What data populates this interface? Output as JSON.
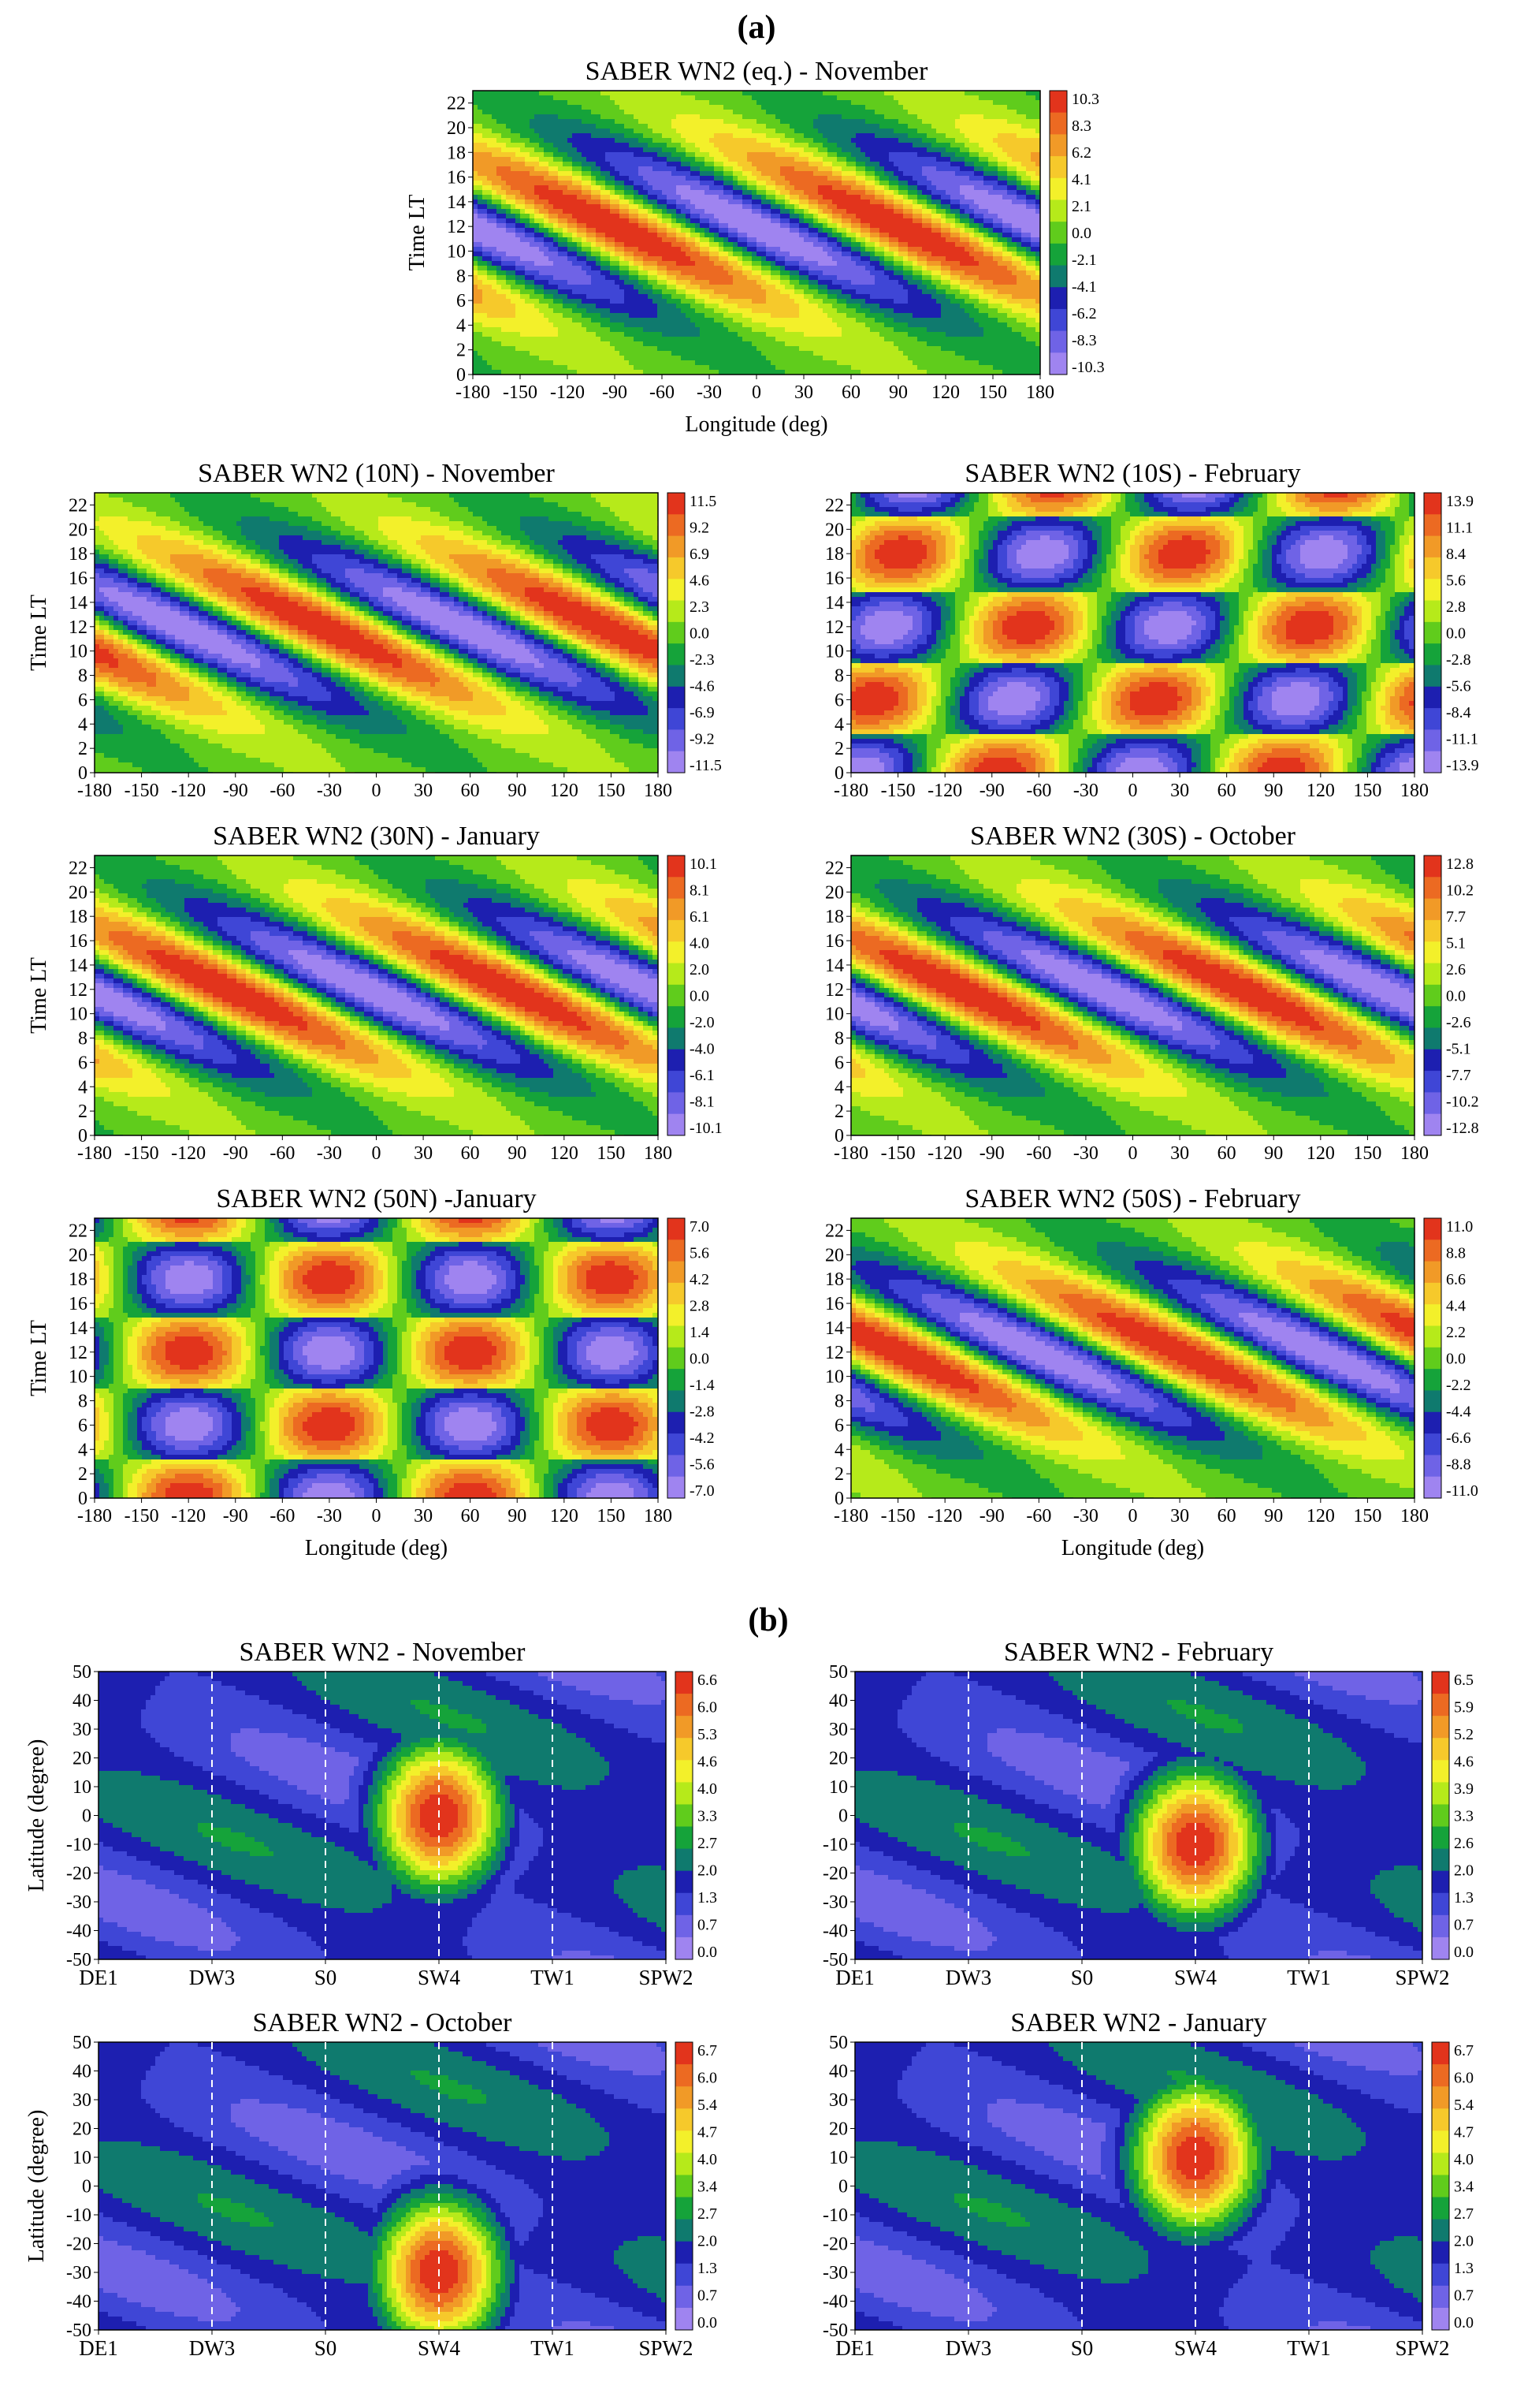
{
  "sections": {
    "a": "(a)",
    "b": "(b)"
  },
  "contour_palette": [
    "#9f84f0",
    "#6f63e6",
    "#3f46d6",
    "#1d1fb0",
    "#0f7a6e",
    "#15a33a",
    "#60cc1c",
    "#b6ea1a",
    "#f3f02a",
    "#f6c92b",
    "#f19a27",
    "#ec6a22",
    "#e2341c"
  ],
  "chart_data": [
    {
      "id": "wn2-eq-nov",
      "type": "heatmap",
      "title": "SABER WN2 (eq.) - November",
      "xlabel": "Longitude (deg)",
      "ylabel": "Time LT",
      "xlim": [
        -180,
        180
      ],
      "ylim": [
        0,
        23
      ],
      "x_ticks": [
        "-180",
        "-150",
        "-120",
        "-90",
        "-60",
        "-30",
        "0",
        "30",
        "60",
        "90",
        "120",
        "150",
        "180"
      ],
      "y_ticks": [
        "0",
        "2",
        "4",
        "6",
        "8",
        "10",
        "12",
        "14",
        "16",
        "18",
        "20",
        "22"
      ],
      "colorbar": [
        "10.3",
        "8.3",
        "6.2",
        "4.1",
        "2.1",
        "0.0",
        "-2.1",
        "-4.1",
        "-6.2",
        "-8.3",
        "-10.3"
      ],
      "amplitude": 10.3,
      "lon_shift_per_hour": -15,
      "phase_lon": -90,
      "mode": "migrating"
    },
    {
      "id": "wn2-10n-nov",
      "type": "heatmap",
      "title": "SABER WN2 (10N) - November",
      "xlabel": "",
      "ylabel": "Time LT",
      "xlim": [
        -180,
        180
      ],
      "ylim": [
        0,
        23
      ],
      "x_ticks": [
        "-180",
        "-150",
        "-120",
        "-90",
        "-60",
        "-30",
        "0",
        "30",
        "60",
        "90",
        "120",
        "150",
        "180"
      ],
      "y_ticks": [
        "0",
        "2",
        "4",
        "6",
        "8",
        "10",
        "12",
        "14",
        "16",
        "18",
        "20",
        "22"
      ],
      "colorbar": [
        "11.5",
        "9.2",
        "6.9",
        "4.6",
        "2.3",
        "0.0",
        "-2.3",
        "-4.6",
        "-6.9",
        "-9.2",
        "-11.5"
      ],
      "amplitude": 11.5,
      "lon_shift_per_hour": -15,
      "phase_lon": -35,
      "mode": "migrating"
    },
    {
      "id": "wn2-10s-feb",
      "type": "heatmap",
      "title": "SABER WN2 (10S) - February",
      "xlabel": "",
      "ylabel": "",
      "xlim": [
        -180,
        180
      ],
      "ylim": [
        0,
        23
      ],
      "x_ticks": [
        "-180",
        "-150",
        "-120",
        "-90",
        "-60",
        "-30",
        "0",
        "30",
        "60",
        "90",
        "120",
        "150",
        "180"
      ],
      "y_ticks": [
        "0",
        "2",
        "4",
        "6",
        "8",
        "10",
        "12",
        "14",
        "16",
        "18",
        "20",
        "22"
      ],
      "colorbar": [
        "13.9",
        "11.1",
        "8.4",
        "5.6",
        "2.8",
        "0.0",
        "-2.8",
        "-5.6",
        "-8.4",
        "-11.1",
        "-13.9"
      ],
      "amplitude": 13.9,
      "lon_shift_per_hour": -3,
      "phase_lon": -85,
      "mode": "standing"
    },
    {
      "id": "wn2-30n-jan",
      "type": "heatmap",
      "title": "SABER WN2 (30N) - January",
      "xlabel": "",
      "ylabel": "Time LT",
      "xlim": [
        -180,
        180
      ],
      "ylim": [
        0,
        23
      ],
      "x_ticks": [
        "-180",
        "-150",
        "-120",
        "-90",
        "-60",
        "-30",
        "0",
        "30",
        "60",
        "90",
        "120",
        "150",
        "180"
      ],
      "y_ticks": [
        "0",
        "2",
        "4",
        "6",
        "8",
        "10",
        "12",
        "14",
        "16",
        "18",
        "20",
        "22"
      ],
      "colorbar": [
        "10.1",
        "8.1",
        "6.1",
        "4.0",
        "2.0",
        "0.0",
        "-2.0",
        "-4.0",
        "-6.1",
        "-8.1",
        "-10.1"
      ],
      "amplitude": 10.1,
      "lon_shift_per_hour": -15,
      "phase_lon": -95,
      "mode": "migrating"
    },
    {
      "id": "wn2-30s-oct",
      "type": "heatmap",
      "title": "SABER WN2 (30S) - October",
      "xlabel": "",
      "ylabel": "",
      "xlim": [
        -180,
        180
      ],
      "ylim": [
        0,
        23
      ],
      "x_ticks": [
        "-180",
        "-150",
        "-120",
        "-90",
        "-60",
        "-30",
        "0",
        "30",
        "60",
        "90",
        "120",
        "150",
        "180"
      ],
      "y_ticks": [
        "0",
        "2",
        "4",
        "6",
        "8",
        "10",
        "12",
        "14",
        "16",
        "18",
        "20",
        "22"
      ],
      "colorbar": [
        "12.8",
        "10.2",
        "7.7",
        "5.1",
        "2.6",
        "0.0",
        "-2.6",
        "-5.1",
        "-7.7",
        "-10.2",
        "-12.8"
      ],
      "amplitude": 12.8,
      "lon_shift_per_hour": -15,
      "phase_lon": -110,
      "mode": "migrating"
    },
    {
      "id": "wn2-50n-jan",
      "type": "heatmap",
      "title": "SABER WN2 (50N) -January",
      "xlabel": "Longitude (deg)",
      "ylabel": "Time LT",
      "xlim": [
        -180,
        180
      ],
      "ylim": [
        0,
        23
      ],
      "x_ticks": [
        "-180",
        "-150",
        "-120",
        "-90",
        "-60",
        "-30",
        "0",
        "30",
        "60",
        "90",
        "120",
        "150",
        "180"
      ],
      "y_ticks": [
        "0",
        "2",
        "4",
        "6",
        "8",
        "10",
        "12",
        "14",
        "16",
        "18",
        "20",
        "22"
      ],
      "colorbar": [
        "7.0",
        "5.6",
        "4.2",
        "2.8",
        "1.4",
        "0.0",
        "-1.4",
        "-2.8",
        "-4.2",
        "-5.6",
        "-7.0"
      ],
      "amplitude": 7.0,
      "lon_shift_per_hour": 0,
      "phase_lon": -120,
      "mode": "standing"
    },
    {
      "id": "wn2-50s-feb",
      "type": "heatmap",
      "title": "SABER WN2 (50S) - February",
      "xlabel": "Longitude (deg)",
      "ylabel": "",
      "xlim": [
        -180,
        180
      ],
      "ylim": [
        0,
        23
      ],
      "x_ticks": [
        "-180",
        "-150",
        "-120",
        "-90",
        "-60",
        "-30",
        "0",
        "30",
        "60",
        "90",
        "120",
        "150",
        "180"
      ],
      "y_ticks": [
        "0",
        "2",
        "4",
        "6",
        "8",
        "10",
        "12",
        "14",
        "16",
        "18",
        "20",
        "22"
      ],
      "colorbar": [
        "11.0",
        "8.8",
        "6.6",
        "4.4",
        "2.2",
        "0.0",
        "-2.2",
        "-4.4",
        "-6.6",
        "-8.8",
        "-11.0"
      ],
      "amplitude": 11.0,
      "lon_shift_per_hour": -15,
      "phase_lon": -150,
      "mode": "migrating"
    },
    {
      "id": "wn2-nov-spectrum",
      "type": "heatmap",
      "title": "SABER WN2 - November",
      "xlabel": "",
      "ylabel": "Latitude (degree)",
      "x_categories": [
        "DE1",
        "DW3",
        "S0",
        "SW4",
        "TW1",
        "SPW2"
      ],
      "y_ticks": [
        "-50",
        "-40",
        "-30",
        "-20",
        "-10",
        "0",
        "10",
        "20",
        "30",
        "40",
        "50"
      ],
      "ylim": [
        -50,
        50
      ],
      "colorbar": [
        "6.6",
        "6.0",
        "5.3",
        "4.6",
        "4.0",
        "3.3",
        "2.7",
        "2.0",
        "1.3",
        "0.7",
        "0.0"
      ],
      "peak": {
        "component": "SW4",
        "latitude": 0,
        "value": 6.6
      }
    },
    {
      "id": "wn2-feb-spectrum",
      "type": "heatmap",
      "title": "SABER WN2 - February",
      "xlabel": "",
      "ylabel": "",
      "x_categories": [
        "DE1",
        "DW3",
        "S0",
        "SW4",
        "TW1",
        "SPW2"
      ],
      "y_ticks": [
        "-50",
        "-40",
        "-30",
        "-20",
        "-10",
        "0",
        "10",
        "20",
        "30",
        "40",
        "50"
      ],
      "ylim": [
        -50,
        50
      ],
      "colorbar": [
        "6.5",
        "5.9",
        "5.2",
        "4.6",
        "3.9",
        "3.3",
        "2.6",
        "2.0",
        "1.3",
        "0.7",
        "0.0"
      ],
      "peak": {
        "component": "SW4",
        "latitude": -10,
        "value": 6.5
      }
    },
    {
      "id": "wn2-oct-spectrum",
      "type": "heatmap",
      "title": "SABER WN2 - October",
      "xlabel": "",
      "ylabel": "Latitude (degree)",
      "x_categories": [
        "DE1",
        "DW3",
        "S0",
        "SW4",
        "TW1",
        "SPW2"
      ],
      "y_ticks": [
        "-50",
        "-40",
        "-30",
        "-20",
        "-10",
        "0",
        "10",
        "20",
        "30",
        "40",
        "50"
      ],
      "ylim": [
        -50,
        50
      ],
      "colorbar": [
        "6.7",
        "6.0",
        "5.4",
        "4.7",
        "4.0",
        "3.4",
        "2.7",
        "2.0",
        "1.3",
        "0.7",
        "0.0"
      ],
      "peak": {
        "component": "SW4",
        "latitude": -30,
        "value": 6.7
      }
    },
    {
      "id": "wn2-jan-spectrum",
      "type": "heatmap",
      "title": "SABER WN2 - January",
      "xlabel": "",
      "ylabel": "",
      "x_categories": [
        "DE1",
        "DW3",
        "S0",
        "SW4",
        "TW1",
        "SPW2"
      ],
      "y_ticks": [
        "-50",
        "-40",
        "-30",
        "-20",
        "-10",
        "0",
        "10",
        "20",
        "30",
        "40",
        "50"
      ],
      "ylim": [
        -50,
        50
      ],
      "colorbar": [
        "6.7",
        "6.0",
        "5.4",
        "4.7",
        "4.0",
        "3.4",
        "2.7",
        "2.0",
        "1.3",
        "0.7",
        "0.0"
      ],
      "peak": {
        "component": "SW4",
        "latitude": 10,
        "value": 6.7
      }
    }
  ]
}
